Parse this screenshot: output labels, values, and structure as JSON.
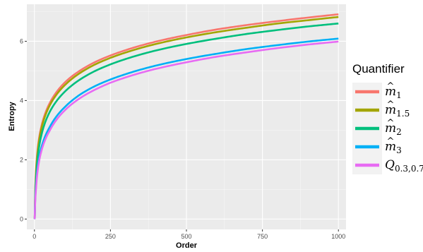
{
  "chart_data": {
    "type": "line",
    "xlabel": "Order",
    "ylabel": "Entropy",
    "xlim": [
      -25,
      1025
    ],
    "ylim": [
      -0.35,
      7.25
    ],
    "x_ticks": [
      0,
      250,
      500,
      750,
      1000
    ],
    "y_ticks": [
      0,
      2,
      4,
      6
    ],
    "grid": true,
    "legend_position": "right",
    "legend_title": "Quantifier",
    "x": [
      1,
      2,
      5,
      10,
      20,
      50,
      100,
      150,
      200,
      250,
      300,
      400,
      500,
      600,
      700,
      800,
      900,
      1000
    ],
    "series": [
      {
        "name": "m̂1",
        "label_main": "m",
        "hat": true,
        "label_sub": "1",
        "color": "#F8766D",
        "values": [
          0.0,
          0.69,
          1.61,
          2.3,
          3.0,
          3.91,
          4.61,
          5.01,
          5.3,
          5.52,
          5.7,
          5.99,
          6.21,
          6.4,
          6.55,
          6.68,
          6.8,
          6.91
        ]
      },
      {
        "name": "m̂1.5",
        "label_main": "m",
        "hat": true,
        "label_sub": "1.5",
        "color": "#A3A500",
        "values": [
          0.0,
          0.62,
          1.52,
          2.21,
          2.92,
          3.83,
          4.52,
          4.93,
          5.22,
          5.44,
          5.62,
          5.91,
          6.13,
          6.31,
          6.46,
          6.6,
          6.71,
          6.82
        ]
      },
      {
        "name": "m̂2",
        "label_main": "m",
        "hat": true,
        "label_sub": "2",
        "color": "#00BF7D",
        "values": [
          0.0,
          0.55,
          1.32,
          2.0,
          2.7,
          3.61,
          4.3,
          4.71,
          5.0,
          5.22,
          5.4,
          5.69,
          5.91,
          6.09,
          6.25,
          6.38,
          6.5,
          6.6
        ]
      },
      {
        "name": "m̂3",
        "label_main": "m",
        "hat": true,
        "label_sub": "3",
        "color": "#00B0F6",
        "values": [
          0.0,
          0.48,
          1.1,
          1.7,
          2.3,
          3.1,
          3.78,
          4.2,
          4.49,
          4.71,
          4.89,
          5.18,
          5.4,
          5.58,
          5.74,
          5.87,
          5.99,
          6.09
        ]
      },
      {
        "name": "Q0.3,0.7",
        "label_main": "Q",
        "hat": false,
        "label_sub": "0.3,0.7",
        "color": "#E76BF3",
        "values": [
          0.0,
          0.42,
          0.98,
          1.58,
          2.18,
          2.98,
          3.67,
          4.08,
          4.37,
          4.6,
          4.78,
          5.07,
          5.29,
          5.48,
          5.63,
          5.77,
          5.89,
          5.99
        ]
      }
    ]
  }
}
